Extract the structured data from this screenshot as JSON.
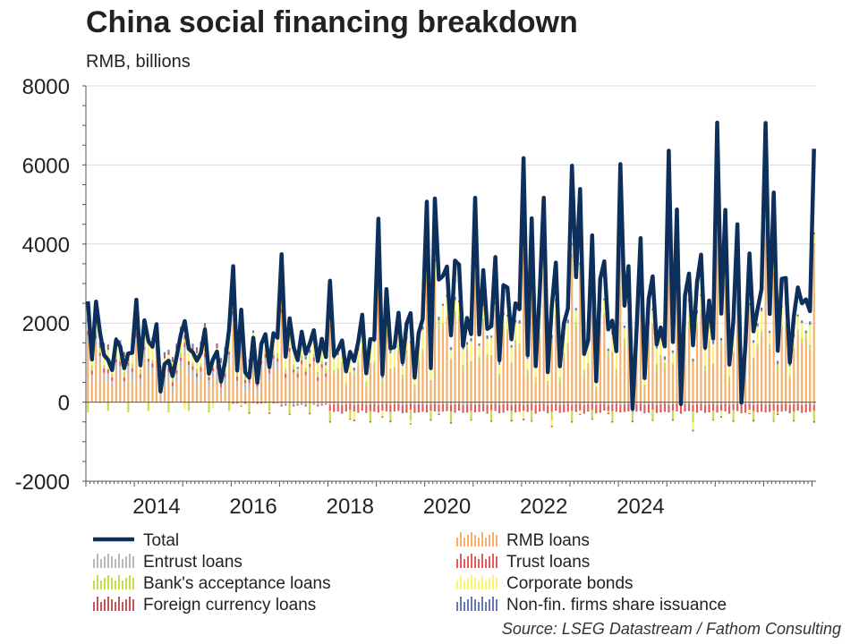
{
  "chart_data": {
    "type": "bar",
    "title": "China social financing breakdown",
    "subtitle": "RMB, billions",
    "source": "Source: LSEG Datastream / Fathom Consulting",
    "x_start": "2013-01",
    "ylim": [
      -2000,
      8000
    ],
    "yticks": [
      -2000,
      0,
      2000,
      4000,
      6000,
      8000
    ],
    "xticks": [
      "2014",
      "2016",
      "2018",
      "2020",
      "2022",
      "2024"
    ],
    "grid": "horizontal",
    "legend_position": "bottom",
    "stacked": true,
    "series": [
      {
        "name": "Total",
        "kind": "line",
        "color": "#0d2f5c",
        "values": [
          2550,
          1080,
          2540,
          1750,
          1190,
          1070,
          810,
          1580,
          1410,
          860,
          1230,
          1250,
          2590,
          930,
          2070,
          1540,
          1400,
          1970,
          270,
          960,
          1050,
          660,
          1150,
          1690,
          2050,
          1350,
          1260,
          1050,
          1240,
          1840,
          720,
          1080,
          1280,
          520,
          1020,
          1830,
          3440,
          800,
          2340,
          750,
          620,
          1630,
          490,
          1470,
          1720,
          890,
          1740,
          1630,
          3740,
          1150,
          2120,
          1390,
          1060,
          1780,
          1220,
          1480,
          1820,
          1040,
          1600,
          1140,
          3070,
          1170,
          1330,
          1560,
          780,
          1270,
          1040,
          1520,
          2210,
          730,
          1590,
          1590,
          4640,
          700,
          2860,
          1360,
          1400,
          2260,
          1010,
          1980,
          2250,
          620,
          1750,
          2100,
          5070,
          860,
          5150,
          3100,
          3190,
          3430,
          1690,
          3580,
          3480,
          1420,
          2130,
          1720,
          5170,
          1710,
          3340,
          1850,
          1920,
          3670,
          1060,
          2960,
          2900,
          1590,
          2500,
          2350,
          6170,
          1190,
          4650,
          910,
          2790,
          5170,
          760,
          2430,
          3530,
          907,
          1990,
          2370,
          5980,
          3160,
          5390,
          1220,
          1560,
          4220,
          528,
          3120,
          3560,
          1840,
          2060,
          1290,
          6020,
          2440,
          3440,
          -170,
          1820,
          4150,
          610,
          2600,
          3180,
          1460,
          1890,
          1410,
          6360,
          1520,
          4870,
          -50,
          2690,
          3250,
          1440,
          3030,
          3730,
          1380,
          2570,
          1610,
          7070,
          2240,
          4860,
          950,
          2060,
          4500,
          -13,
          1470,
          3760,
          1790,
          2350,
          2860,
          7060,
          2230,
          5300,
          1300,
          3120,
          3140,
          1000,
          2170,
          2900,
          2500,
          2600,
          2300,
          6410
        ]
      },
      {
        "name": "RMB loans",
        "kind": "bar",
        "color": "#f5b06a"
      },
      {
        "name": "Entrust loans",
        "kind": "bar",
        "color": "#b8b8b8"
      },
      {
        "name": "Trust loans",
        "kind": "bar",
        "color": "#e35b5b"
      },
      {
        "name": "Bank's acceptance loans",
        "kind": "bar",
        "color": "#c6dc4b"
      },
      {
        "name": "Corporate bonds",
        "kind": "bar",
        "color": "#fcf26e"
      },
      {
        "name": "Foreign currency loans",
        "kind": "bar",
        "color": "#c25858"
      },
      {
        "name": "Non-fin. firms share issuance",
        "kind": "bar",
        "color": "#6a7aa8"
      }
    ]
  }
}
